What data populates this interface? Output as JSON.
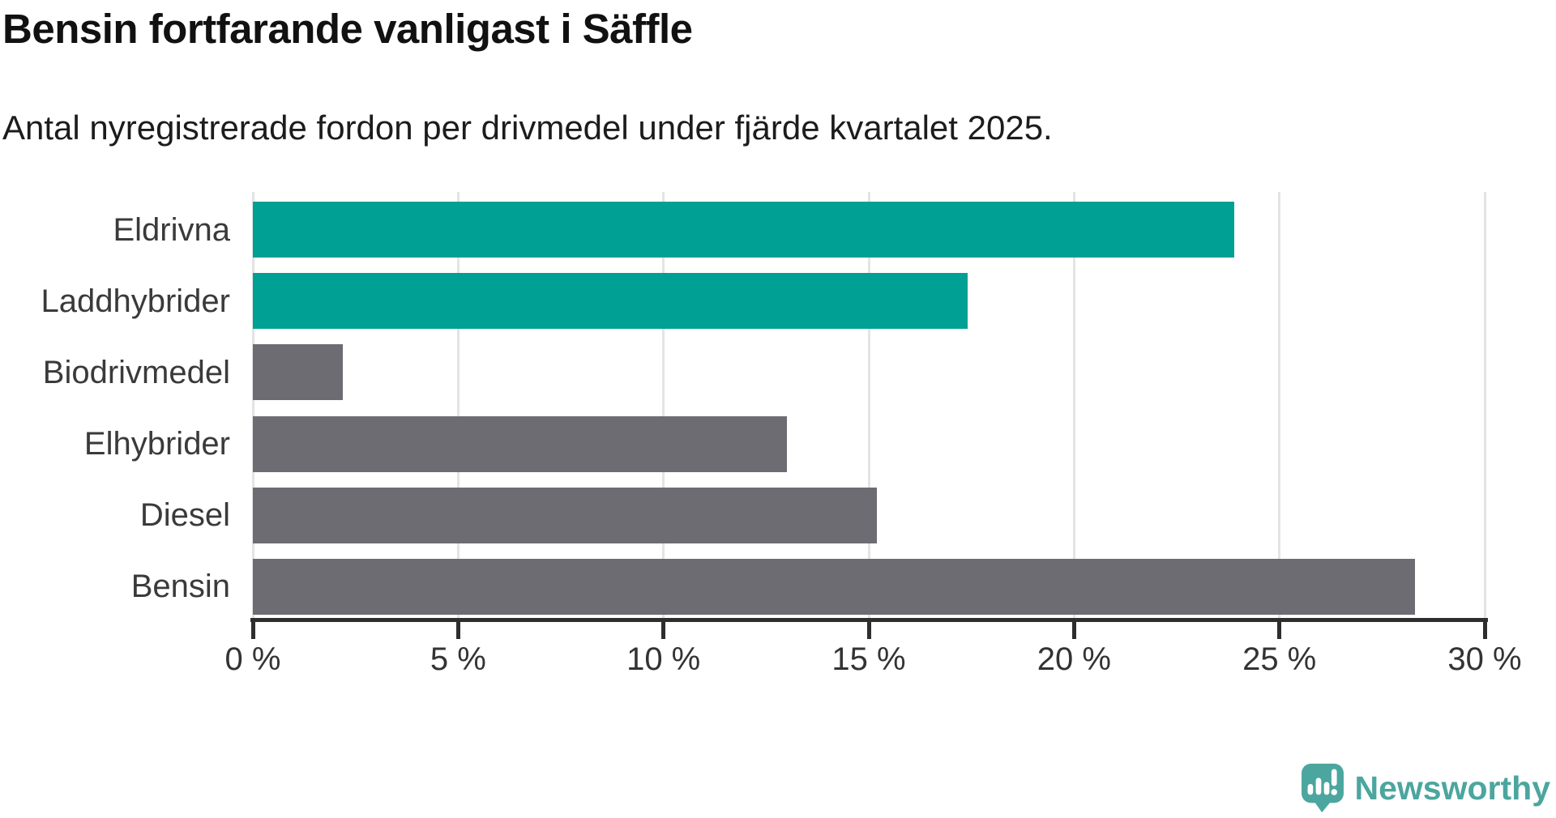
{
  "header": {
    "title": "Bensin fortfarande vanligast i Säffle",
    "subtitle": "Antal nyregistrerade fordon per drivmedel under fjärde kvartalet 2025."
  },
  "chart_data": {
    "type": "bar",
    "orientation": "horizontal",
    "title": "Bensin fortfarande vanligast i Säffle",
    "subtitle": "Antal nyregistrerade fordon per drivmedel under fjärde kvartalet 2025.",
    "categories": [
      "Eldrivna",
      "Laddhybrider",
      "Biodrivmedel",
      "Elhybrider",
      "Diesel",
      "Bensin"
    ],
    "values": [
      23.9,
      17.4,
      2.2,
      13.0,
      15.2,
      28.3
    ],
    "unit": "%",
    "bar_colors": [
      "#00A094",
      "#00A094",
      "#6C6C72",
      "#6C6C72",
      "#6C6C72",
      "#6C6C72"
    ],
    "highlight_color": "#00A094",
    "base_color": "#6C6C72",
    "xlim": [
      0,
      30
    ],
    "x_ticks": [
      0,
      5,
      10,
      15,
      20,
      25,
      30
    ],
    "x_tick_labels": [
      "0 %",
      "5 %",
      "10 %",
      "15 %",
      "20 %",
      "25 %",
      "30 %"
    ],
    "grid": "vertical",
    "gridline_color": "#e4e4e4",
    "legend": "none"
  },
  "footer": {
    "brand": "Newsworthy",
    "brand_color": "#4BA69F"
  }
}
